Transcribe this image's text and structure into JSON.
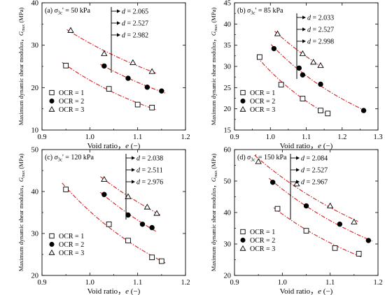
{
  "shared": {
    "xlabel": "Void ratio，e (−)",
    "ylabel": "Maximum dynamic shear modulus，G_max (MPa)",
    "legend": [
      "OCR = 1",
      "OCR = 2",
      "OCR = 3"
    ],
    "fit_color": "#d42020"
  },
  "chart_data": [
    {
      "type": "scatter",
      "panel_label": "(a)",
      "stress_label": "σ3c' = 50 kPa",
      "xlabel": "Void ratio，e (−)",
      "ylabel": "Maximum dynamic shear modulus，G_max (MPa)",
      "xlim": [
        0.9,
        1.2
      ],
      "ylim": [
        10,
        40
      ],
      "xticks": [
        "0.9",
        "1.0",
        "1.1",
        "1.2"
      ],
      "yticks": [
        "10",
        "20",
        "30",
        "40"
      ],
      "d_values": [
        "d = 2.065",
        "d = 2.527",
        "d = 2.982"
      ],
      "series": [
        {
          "name": "OCR = 1",
          "marker": "square",
          "x": [
            0.95,
            1.04,
            1.1,
            1.13
          ],
          "y": [
            25.2,
            19.7,
            16.0,
            15.3
          ]
        },
        {
          "name": "OCR = 2",
          "marker": "circle",
          "x": [
            1.03,
            1.08,
            1.12,
            1.15
          ],
          "y": [
            25.1,
            22.2,
            20.1,
            19.2
          ]
        },
        {
          "name": "OCR = 3",
          "marker": "triangle",
          "x": [
            0.96,
            1.03,
            1.09,
            1.13
          ],
          "y": [
            33.5,
            28.0,
            25.9,
            23.8
          ]
        }
      ]
    },
    {
      "type": "scatter",
      "panel_label": "(b)",
      "stress_label": "σ3c' = 85 kPa",
      "xlabel": "Void ratio，e (−)",
      "ylabel": "Maximum dynamic shear modulus，G_max (MPa)",
      "xlim": [
        0.9,
        1.3
      ],
      "ylim": [
        15,
        45
      ],
      "xticks": [
        "0.9",
        "1.0",
        "1.1",
        "1.2",
        "1.3"
      ],
      "yticks": [
        "15",
        "20",
        "25",
        "30",
        "35",
        "40",
        "45"
      ],
      "d_values": [
        "d = 2.033",
        "d = 2.527",
        "d = 2.998"
      ],
      "series": [
        {
          "name": "OCR = 1",
          "marker": "square",
          "x": [
            0.97,
            1.03,
            1.09,
            1.14,
            1.16
          ],
          "y": [
            32.2,
            25.7,
            22.4,
            19.6,
            18.9
          ]
        },
        {
          "name": "OCR = 2",
          "marker": "circle",
          "x": [
            1.01,
            1.08,
            1.09,
            1.14,
            1.26
          ],
          "y": [
            34.2,
            29.6,
            28.0,
            25.8,
            19.6
          ]
        },
        {
          "name": "OCR = 3",
          "marker": "triangle",
          "x": [
            1.02,
            1.09,
            1.12,
            1.14
          ],
          "y": [
            37.7,
            33.0,
            31.0,
            30.2
          ]
        }
      ]
    },
    {
      "type": "scatter",
      "panel_label": "(c)",
      "stress_label": "σ3c' = 120 kPa",
      "xlabel": "Void ratio，e (−)",
      "ylabel": "Maximum dynamic shear modulus，G_max (MPa)",
      "xlim": [
        0.9,
        1.2
      ],
      "ylim": [
        20,
        50
      ],
      "xticks": [
        "0.9",
        "1.0",
        "1.1",
        "1.2"
      ],
      "yticks": [
        "20",
        "30",
        "40",
        "50"
      ],
      "d_values": [
        "d = 2.038",
        "d = 2.511",
        "d = 2.976"
      ],
      "series": [
        {
          "name": "OCR = 1",
          "marker": "square",
          "x": [
            0.95,
            1.04,
            1.08,
            1.13,
            1.15
          ],
          "y": [
            40.5,
            32.2,
            28.3,
            24.3,
            23.4
          ]
        },
        {
          "name": "OCR = 2",
          "marker": "circle",
          "x": [
            1.03,
            1.08,
            1.11,
            1.13
          ],
          "y": [
            39.3,
            34.4,
            32.2,
            31.4
          ]
        },
        {
          "name": "OCR = 3",
          "marker": "triangle",
          "x": [
            1.03,
            1.08,
            1.12,
            1.14
          ],
          "y": [
            42.9,
            38.8,
            36.3,
            34.8
          ]
        }
      ]
    },
    {
      "type": "scatter",
      "panel_label": "(d)",
      "stress_label": "σ3c' = 150 kPa",
      "xlabel": "Void ratio，e (−)",
      "ylabel": "Maximum dynamic shear modulus，G_max (MPa)",
      "xlim": [
        0.9,
        1.2
      ],
      "ylim": [
        20,
        60
      ],
      "xticks": [
        "0.9",
        "1.0",
        "1.1",
        "1.2"
      ],
      "yticks": [
        "20",
        "30",
        "40",
        "50",
        "60"
      ],
      "d_values": [
        "d = 2.084",
        "d = 2.527",
        "d = 2.967"
      ],
      "series": [
        {
          "name": "OCR = 1",
          "marker": "square",
          "x": [
            0.99,
            1.05,
            1.11,
            1.16
          ],
          "y": [
            41.2,
            34.2,
            28.7,
            26.9
          ]
        },
        {
          "name": "OCR = 2",
          "marker": "circle",
          "x": [
            0.98,
            1.05,
            1.12,
            1.18
          ],
          "y": [
            49.6,
            42.1,
            36.3,
            31.1
          ]
        },
        {
          "name": "OCR = 3",
          "marker": "triangle",
          "x": [
            0.95,
            1.03,
            1.1,
            1.15
          ],
          "y": [
            56.2,
            49.1,
            42.1,
            37.0
          ]
        }
      ]
    }
  ]
}
